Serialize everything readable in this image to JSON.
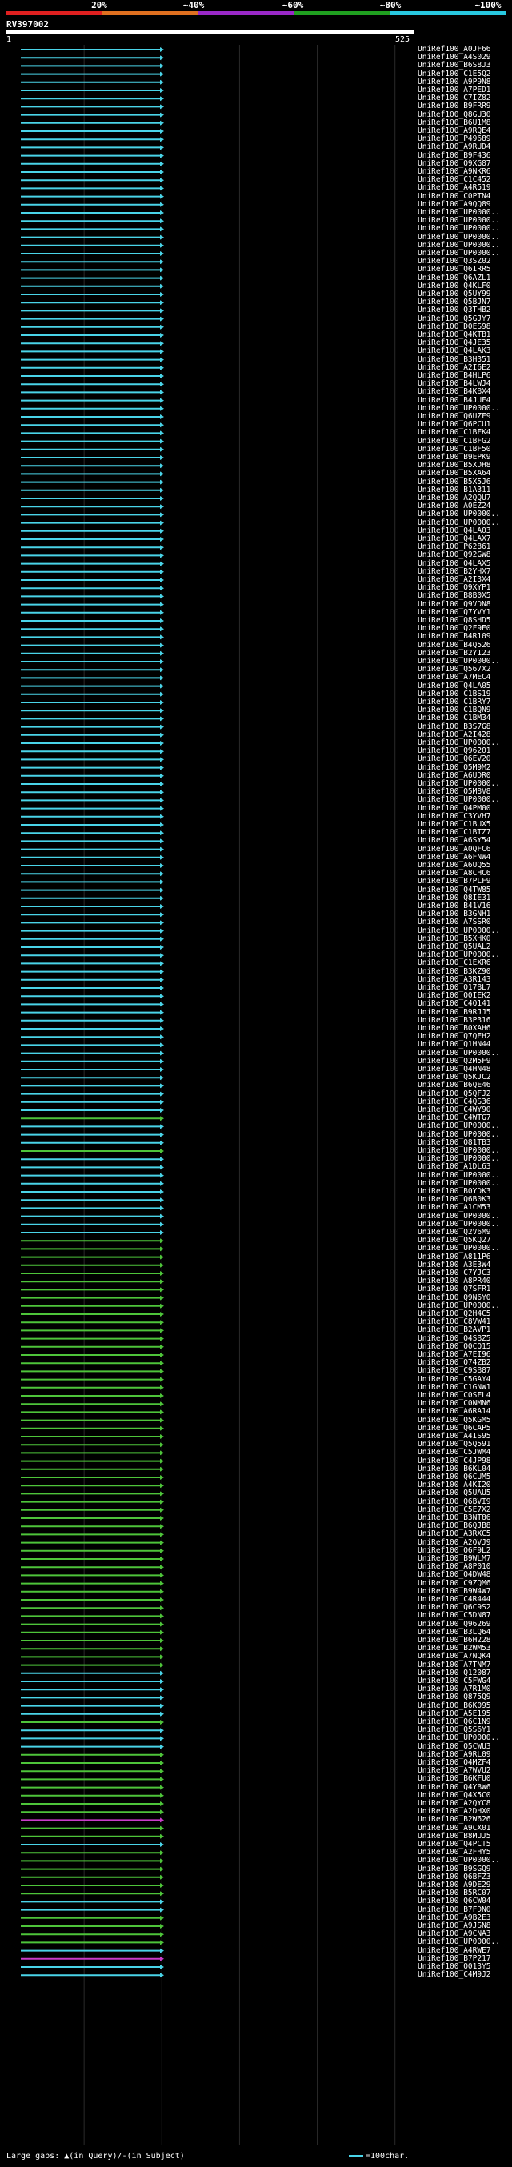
{
  "identity_scale": {
    "labels": [
      "20%",
      "~40%",
      "~60%",
      "~80%",
      "~100%"
    ],
    "colors": [
      "#e02020",
      "#e07020",
      "#9a28c8",
      "#20a020",
      "#28c8e0"
    ]
  },
  "query": {
    "title": "RV397002",
    "start": "1",
    "end": "525"
  },
  "axis": {
    "query_length": 525
  },
  "hits": [
    {
      "name": "UniRef100_A0JF66",
      "id": "cyan"
    },
    {
      "name": "UniRef100_A4S029",
      "id": "cyan"
    },
    {
      "name": "UniRef100_B6S8J3",
      "id": "cyan"
    },
    {
      "name": "UniRef100_C1E5Q2",
      "id": "cyan"
    },
    {
      "name": "UniRef100_A9P9N8",
      "id": "cyan"
    },
    {
      "name": "UniRef100_A7PED1",
      "id": "cyan"
    },
    {
      "name": "UniRef100_C7IZ82",
      "id": "cyan"
    },
    {
      "name": "UniRef100_B9FRR9",
      "id": "cyan"
    },
    {
      "name": "UniRef100_Q8GU30",
      "id": "cyan"
    },
    {
      "name": "UniRef100_B6U1M8",
      "id": "cyan"
    },
    {
      "name": "UniRef100_A9RQE4",
      "id": "cyan"
    },
    {
      "name": "UniRef100_P49689",
      "id": "cyan"
    },
    {
      "name": "UniRef100_A9RUD4",
      "id": "cyan"
    },
    {
      "name": "UniRef100_B9F436",
      "id": "cyan"
    },
    {
      "name": "UniRef100_Q9XG87",
      "id": "cyan"
    },
    {
      "name": "UniRef100_A9NKR6",
      "id": "cyan"
    },
    {
      "name": "UniRef100_C1C452",
      "id": "cyan"
    },
    {
      "name": "UniRef100_A4R519",
      "id": "cyan"
    },
    {
      "name": "UniRef100_C0PTN4",
      "id": "cyan"
    },
    {
      "name": "UniRef100_A9QQ89",
      "id": "cyan"
    },
    {
      "name": "UniRef100_UP0000..",
      "id": "cyan"
    },
    {
      "name": "UniRef100_UP0000..",
      "id": "cyan"
    },
    {
      "name": "UniRef100_UP0000..",
      "id": "cyan"
    },
    {
      "name": "UniRef100_UP0000..",
      "id": "cyan"
    },
    {
      "name": "UniRef100_UP0000..",
      "id": "cyan"
    },
    {
      "name": "UniRef100_UP0000..",
      "id": "cyan"
    },
    {
      "name": "UniRef100_Q3SZ02",
      "id": "cyan"
    },
    {
      "name": "UniRef100_Q6IRR5",
      "id": "cyan"
    },
    {
      "name": "UniRef100_Q6AZL1",
      "id": "cyan"
    },
    {
      "name": "UniRef100_Q4KLF0",
      "id": "cyan"
    },
    {
      "name": "UniRef100_Q5UY99",
      "id": "cyan"
    },
    {
      "name": "UniRef100_Q5BJN7",
      "id": "cyan"
    },
    {
      "name": "UniRef100_Q3THB2",
      "id": "cyan"
    },
    {
      "name": "UniRef100_Q5GJY7",
      "id": "cyan"
    },
    {
      "name": "UniRef100_D0ES98",
      "id": "cyan"
    },
    {
      "name": "UniRef100_Q4KTB1",
      "id": "cyan"
    },
    {
      "name": "UniRef100_Q4JE35",
      "id": "cyan"
    },
    {
      "name": "UniRef100_Q4LAK3",
      "id": "cyan"
    },
    {
      "name": "UniRef100_B3H351",
      "id": "cyan"
    },
    {
      "name": "UniRef100_A2I6E2",
      "id": "cyan"
    },
    {
      "name": "UniRef100_B4HLP6",
      "id": "cyan"
    },
    {
      "name": "UniRef100_B4LWJ4",
      "id": "cyan"
    },
    {
      "name": "UniRef100_B4KBX4",
      "id": "cyan"
    },
    {
      "name": "UniRef100_B4JUF4",
      "id": "cyan"
    },
    {
      "name": "UniRef100_UP0000..",
      "id": "cyan"
    },
    {
      "name": "UniRef100_Q6UZF9",
      "id": "cyan"
    },
    {
      "name": "UniRef100_Q6PCU1",
      "id": "cyan"
    },
    {
      "name": "UniRef100_C1BFK4",
      "id": "cyan"
    },
    {
      "name": "UniRef100_C1BFG2",
      "id": "cyan"
    },
    {
      "name": "UniRef100_C1BF50",
      "id": "cyan"
    },
    {
      "name": "UniRef100_B9EPK9",
      "id": "cyan"
    },
    {
      "name": "UniRef100_B5XDH8",
      "id": "cyan"
    },
    {
      "name": "UniRef100_B5XA64",
      "id": "cyan"
    },
    {
      "name": "UniRef100_B5X5J6",
      "id": "cyan"
    },
    {
      "name": "UniRef100_B1A311",
      "id": "cyan"
    },
    {
      "name": "UniRef100_A2QQU7",
      "id": "cyan"
    },
    {
      "name": "UniRef100_A0EZ24",
      "id": "cyan"
    },
    {
      "name": "UniRef100_UP0000..",
      "id": "cyan"
    },
    {
      "name": "UniRef100_UP0000..",
      "id": "cyan"
    },
    {
      "name": "UniRef100_Q4LA03",
      "id": "cyan"
    },
    {
      "name": "UniRef100_Q4LAX7",
      "id": "cyan"
    },
    {
      "name": "UniRef100_P62861",
      "id": "cyan"
    },
    {
      "name": "UniRef100_Q92GW8",
      "id": "cyan"
    },
    {
      "name": "UniRef100_Q4LAX5",
      "id": "cyan"
    },
    {
      "name": "UniRef100_B2YHX7",
      "id": "cyan"
    },
    {
      "name": "UniRef100_A2I3X4",
      "id": "cyan"
    },
    {
      "name": "UniRef100_Q9XYP1",
      "id": "cyan"
    },
    {
      "name": "UniRef100_B8B0X5",
      "id": "cyan"
    },
    {
      "name": "UniRef100_Q9VDN8",
      "id": "cyan"
    },
    {
      "name": "UniRef100_Q7YVY1",
      "id": "cyan"
    },
    {
      "name": "UniRef100_Q8SHD5",
      "id": "cyan"
    },
    {
      "name": "UniRef100_Q2F9E0",
      "id": "cyan"
    },
    {
      "name": "UniRef100_B4R109",
      "id": "cyan"
    },
    {
      "name": "UniRef100_B4Q526",
      "id": "cyan"
    },
    {
      "name": "UniRef100_B2Y123",
      "id": "cyan"
    },
    {
      "name": "UniRef100_UP0000..",
      "id": "cyan"
    },
    {
      "name": "UniRef100_Q567X2",
      "id": "cyan"
    },
    {
      "name": "UniRef100_A7MEC4",
      "id": "cyan"
    },
    {
      "name": "UniRef100_Q4LA05",
      "id": "cyan"
    },
    {
      "name": "UniRef100_C1BS19",
      "id": "cyan"
    },
    {
      "name": "UniRef100_C1BRY7",
      "id": "cyan"
    },
    {
      "name": "UniRef100_C1BQN9",
      "id": "cyan"
    },
    {
      "name": "UniRef100_C1BM34",
      "id": "cyan"
    },
    {
      "name": "UniRef100_B3S7G8",
      "id": "cyan"
    },
    {
      "name": "UniRef100_A2I428",
      "id": "cyan"
    },
    {
      "name": "UniRef100_UP0000..",
      "id": "cyan"
    },
    {
      "name": "UniRef100_Q96201",
      "id": "cyan"
    },
    {
      "name": "UniRef100_Q6EV20",
      "id": "cyan"
    },
    {
      "name": "UniRef100_Q5M9M2",
      "id": "cyan"
    },
    {
      "name": "UniRef100_A6UDR0",
      "id": "cyan"
    },
    {
      "name": "UniRef100_UP0000..",
      "id": "cyan"
    },
    {
      "name": "UniRef100_Q5M8V8",
      "id": "cyan"
    },
    {
      "name": "UniRef100_UP0000..",
      "id": "cyan"
    },
    {
      "name": "UniRef100_Q4PM00",
      "id": "cyan"
    },
    {
      "name": "UniRef100_C3YVH7",
      "id": "cyan"
    },
    {
      "name": "UniRef100_C1BUX5",
      "id": "cyan"
    },
    {
      "name": "UniRef100_C1BTZ7",
      "id": "cyan"
    },
    {
      "name": "UniRef100_A6SY54",
      "id": "cyan"
    },
    {
      "name": "UniRef100_A0QFC6",
      "id": "cyan"
    },
    {
      "name": "UniRef100_A6FNW4",
      "id": "cyan"
    },
    {
      "name": "UniRef100_A6UQ55",
      "id": "cyan"
    },
    {
      "name": "UniRef100_A8CHC6",
      "id": "cyan"
    },
    {
      "name": "UniRef100_B7PLF9",
      "id": "cyan"
    },
    {
      "name": "UniRef100_Q4TW85",
      "id": "cyan"
    },
    {
      "name": "UniRef100_Q8IE31",
      "id": "cyan"
    },
    {
      "name": "UniRef100_B41V16",
      "id": "cyan"
    },
    {
      "name": "UniRef100_B3GNH1",
      "id": "cyan"
    },
    {
      "name": "UniRef100_A7SSR0",
      "id": "cyan"
    },
    {
      "name": "UniRef100_UP0000..",
      "id": "cyan"
    },
    {
      "name": "UniRef100_B5XHK0",
      "id": "cyan"
    },
    {
      "name": "UniRef100_Q5UAL2",
      "id": "cyan"
    },
    {
      "name": "UniRef100_UP0000..",
      "id": "cyan"
    },
    {
      "name": "UniRef100_C1EXR6",
      "id": "cyan"
    },
    {
      "name": "UniRef100_B3KZ90",
      "id": "cyan"
    },
    {
      "name": "UniRef100_A3R143",
      "id": "cyan"
    },
    {
      "name": "UniRef100_Q17BL7",
      "id": "cyan"
    },
    {
      "name": "UniRef100_Q0IEK2",
      "id": "cyan"
    },
    {
      "name": "UniRef100_C4Q141",
      "id": "cyan"
    },
    {
      "name": "UniRef100_B9RJJ5",
      "id": "cyan"
    },
    {
      "name": "UniRef100_B3P316",
      "id": "cyan"
    },
    {
      "name": "UniRef100_B0XAH6",
      "id": "cyan"
    },
    {
      "name": "UniRef100_Q7QEH2",
      "id": "cyan"
    },
    {
      "name": "UniRef100_Q1HN44",
      "id": "cyan"
    },
    {
      "name": "UniRef100_UP0000..",
      "id": "cyan"
    },
    {
      "name": "UniRef100_Q2M5F9",
      "id": "cyan"
    },
    {
      "name": "UniRef100_Q4HN48",
      "id": "cyan"
    },
    {
      "name": "UniRef100_Q5KJC2",
      "id": "cyan"
    },
    {
      "name": "UniRef100_B6QE46",
      "id": "cyan"
    },
    {
      "name": "UniRef100_Q5QFJ2",
      "id": "cyan"
    },
    {
      "name": "UniRef100_C4QS36",
      "id": "cyan"
    },
    {
      "name": "UniRef100_C4WY90",
      "id": "cyan"
    },
    {
      "name": "UniRef100_C4WTG7",
      "id": "green"
    },
    {
      "name": "UniRef100_UP0000..",
      "id": "cyan"
    },
    {
      "name": "UniRef100_UP0000..",
      "id": "cyan"
    },
    {
      "name": "UniRef100_Q81TB3",
      "id": "cyan"
    },
    {
      "name": "UniRef100_UP0000..",
      "id": "green"
    },
    {
      "name": "UniRef100_UP0000..",
      "id": "cyan"
    },
    {
      "name": "UniRef100_A1DL63",
      "id": "cyan"
    },
    {
      "name": "UniRef100_UP0000..",
      "id": "cyan"
    },
    {
      "name": "UniRef100_UP0000..",
      "id": "cyan"
    },
    {
      "name": "UniRef100_B0YDK3",
      "id": "cyan"
    },
    {
      "name": "UniRef100_Q6B0K3",
      "id": "cyan"
    },
    {
      "name": "UniRef100_A1CM53",
      "id": "cyan"
    },
    {
      "name": "UniRef100_UP0000..",
      "id": "cyan"
    },
    {
      "name": "UniRef100_UP0000..",
      "id": "cyan"
    },
    {
      "name": "UniRef100_Q2V6M9",
      "id": "cyan"
    },
    {
      "name": "UniRef100_Q5KQ27",
      "id": "green"
    },
    {
      "name": "UniRef100_UP0000..",
      "id": "green"
    },
    {
      "name": "UniRef100_A811P6",
      "id": "green"
    },
    {
      "name": "UniRef100_A3E3W4",
      "id": "green"
    },
    {
      "name": "UniRef100_C7YJC3",
      "id": "green"
    },
    {
      "name": "UniRef100_A8PR40",
      "id": "green"
    },
    {
      "name": "UniRef100_Q7SFR1",
      "id": "green"
    },
    {
      "name": "UniRef100_Q9N6Y0",
      "id": "green"
    },
    {
      "name": "UniRef100_UP0000..",
      "id": "green"
    },
    {
      "name": "UniRef100_Q2H4C5",
      "id": "green"
    },
    {
      "name": "UniRef100_C8VW41",
      "id": "green"
    },
    {
      "name": "UniRef100_B2AVP1",
      "id": "green"
    },
    {
      "name": "UniRef100_Q4SBZ5",
      "id": "green"
    },
    {
      "name": "UniRef100_Q0CQ15",
      "id": "green"
    },
    {
      "name": "UniRef100_A7EI96",
      "id": "green"
    },
    {
      "name": "UniRef100_Q74ZB2",
      "id": "green"
    },
    {
      "name": "UniRef100_C9SB87",
      "id": "green"
    },
    {
      "name": "UniRef100_C5GAY4",
      "id": "green"
    },
    {
      "name": "UniRef100_C1GNW1",
      "id": "green"
    },
    {
      "name": "UniRef100_C0SFL4",
      "id": "green"
    },
    {
      "name": "UniRef100_C0NMN6",
      "id": "green"
    },
    {
      "name": "UniRef100_A6RA14",
      "id": "green"
    },
    {
      "name": "UniRef100_Q5KGM5",
      "id": "green"
    },
    {
      "name": "UniRef100_Q6CAP5",
      "id": "green"
    },
    {
      "name": "UniRef100_A4IS95",
      "id": "green"
    },
    {
      "name": "UniRef100_Q5Q591",
      "id": "green"
    },
    {
      "name": "UniRef100_C5JWM4",
      "id": "green"
    },
    {
      "name": "UniRef100_C4JP98",
      "id": "green"
    },
    {
      "name": "UniRef100_B6KL04",
      "id": "green"
    },
    {
      "name": "UniRef100_Q6CUM5",
      "id": "green"
    },
    {
      "name": "UniRef100_A4KI20",
      "id": "green"
    },
    {
      "name": "UniRef100_Q5UAU5",
      "id": "green"
    },
    {
      "name": "UniRef100_Q6BVI9",
      "id": "green"
    },
    {
      "name": "UniRef100_C5E7X2",
      "id": "green"
    },
    {
      "name": "UniRef100_B3NT86",
      "id": "green"
    },
    {
      "name": "UniRef100_B6QJB8",
      "id": "green"
    },
    {
      "name": "UniRef100_A3RXC5",
      "id": "green"
    },
    {
      "name": "UniRef100_A2QVJ9",
      "id": "green"
    },
    {
      "name": "UniRef100_Q6F9L2",
      "id": "green"
    },
    {
      "name": "UniRef100_B9WLM7",
      "id": "green"
    },
    {
      "name": "UniRef100_A8P010",
      "id": "green"
    },
    {
      "name": "UniRef100_Q4DW48",
      "id": "green"
    },
    {
      "name": "UniRef100_C9ZQM6",
      "id": "green"
    },
    {
      "name": "UniRef100_B9W4W7",
      "id": "green"
    },
    {
      "name": "UniRef100_C4R444",
      "id": "green"
    },
    {
      "name": "UniRef100_Q6C9S2",
      "id": "green"
    },
    {
      "name": "UniRef100_C5DN87",
      "id": "green"
    },
    {
      "name": "UniRef100_Q96269",
      "id": "green"
    },
    {
      "name": "UniRef100_B3LQ64",
      "id": "green"
    },
    {
      "name": "UniRef100_B6H228",
      "id": "green"
    },
    {
      "name": "UniRef100_B2WM53",
      "id": "green"
    },
    {
      "name": "UniRef100_A7NQK4",
      "id": "green"
    },
    {
      "name": "UniRef100_A7TNM7",
      "id": "green"
    },
    {
      "name": "UniRef100_Q12087",
      "id": "cyan"
    },
    {
      "name": "UniRef100_C5FWG4",
      "id": "cyan"
    },
    {
      "name": "UniRef100_A7R1M0",
      "id": "cyan"
    },
    {
      "name": "UniRef100_Q875Q9",
      "id": "cyan"
    },
    {
      "name": "UniRef100_B6K095",
      "id": "cyan"
    },
    {
      "name": "UniRef100_A5E195",
      "id": "cyan"
    },
    {
      "name": "UniRef100_Q6C1N9",
      "id": "green"
    },
    {
      "name": "UniRef100_Q5S6Y1",
      "id": "cyan"
    },
    {
      "name": "UniRef100_UP0000..",
      "id": "cyan"
    },
    {
      "name": "UniRef100_Q5CWU3",
      "id": "cyan"
    },
    {
      "name": "UniRef100_A9RL09",
      "id": "green"
    },
    {
      "name": "UniRef100_Q4MZF4",
      "id": "green"
    },
    {
      "name": "UniRef100_A7WVU2",
      "id": "green"
    },
    {
      "name": "UniRef100_B6KFU0",
      "id": "green"
    },
    {
      "name": "UniRef100_Q4YBW6",
      "id": "green"
    },
    {
      "name": "UniRef100_Q4X5C0",
      "id": "green"
    },
    {
      "name": "UniRef100_A2QYC8",
      "id": "green"
    },
    {
      "name": "UniRef100_A2DHX0",
      "id": "green"
    },
    {
      "name": "UniRef100_B2W626",
      "id": "purple"
    },
    {
      "name": "UniRef100_A9CX01",
      "id": "green"
    },
    {
      "name": "UniRef100_B8MUJ5",
      "id": "green"
    },
    {
      "name": "UniRef100_Q4PCT5",
      "id": "cyan"
    },
    {
      "name": "UniRef100_A2FHY5",
      "id": "green"
    },
    {
      "name": "UniRef100_UP0000..",
      "id": "green"
    },
    {
      "name": "UniRef100_B9SGQ9",
      "id": "green"
    },
    {
      "name": "UniRef100_Q6BFZ3",
      "id": "green"
    },
    {
      "name": "UniRef100_A9DE29",
      "id": "green"
    },
    {
      "name": "UniRef100_B5RC07",
      "id": "green"
    },
    {
      "name": "UniRef100_Q6CW04",
      "id": "cyan"
    },
    {
      "name": "UniRef100_B7FDN0",
      "id": "cyan"
    },
    {
      "name": "UniRef100_A9B2E3",
      "id": "green"
    },
    {
      "name": "UniRef100_A9JSN8",
      "id": "green"
    },
    {
      "name": "UniRef100_A9CNA3",
      "id": "green"
    },
    {
      "name": "UniRef100_UP0000..",
      "id": "green"
    },
    {
      "name": "UniRef100_A4RWE7",
      "id": "cyan"
    },
    {
      "name": "UniRef100_B7P217",
      "id": "purple"
    },
    {
      "name": "UniRef100_Q013Y5",
      "id": "cyan"
    },
    {
      "name": "UniRef100_C4M9J2",
      "id": "cyan"
    }
  ],
  "footer": {
    "large_gaps_label": "Large gaps:",
    "gap_markers": "▲(in Query)/-(in Subject)",
    "legend_text": "=100char."
  },
  "colors": {
    "cyan": "#4ad4e8",
    "green": "#4ec43a",
    "purple": "#c83cc8",
    "grid": "#2a2a2a"
  }
}
